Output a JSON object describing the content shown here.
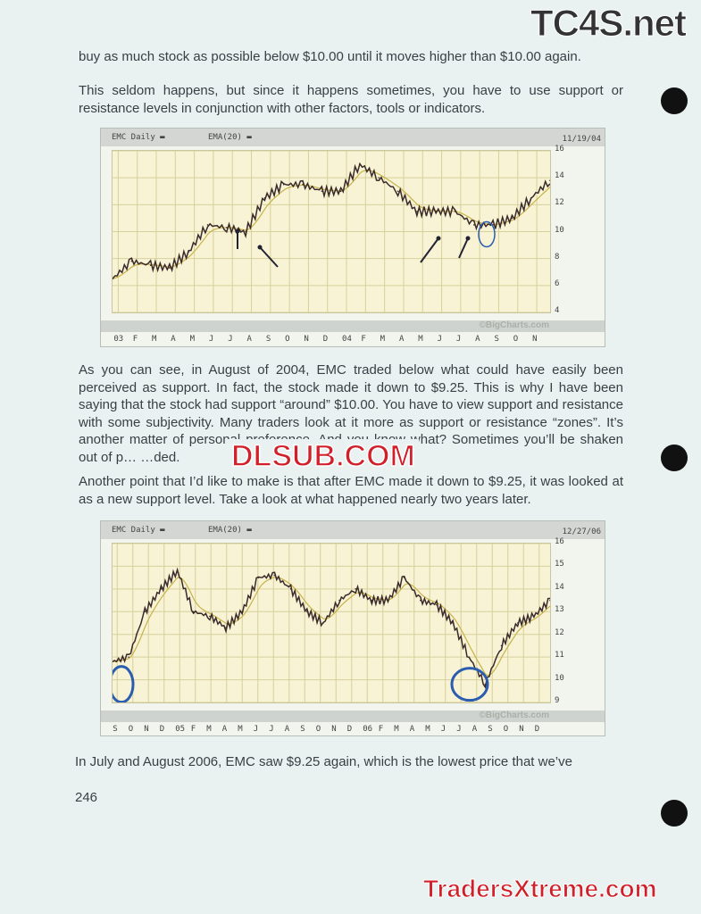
{
  "watermarks": {
    "top": "TC4S.net",
    "middle": "DLSUB.COM",
    "bottom": "TradersXtreme.com"
  },
  "paragraphs": [
    "buy as much stock as possible below $10.00 until it moves higher than $10.00 again.",
    "This seldom happens, but since it happens sometimes, you have to use support or resistance levels in conjunction with other factors, tools or indicators.",
    "As you can see, in August of 2004, EMC traded below what could have easily been perceived as support. In fact, the stock made it down to $9.25. This is why I have been saying that the stock had support “around” $10.00. You have to view support and resistance with some subjectivity. Many traders look at it more as support or resistance “zones”. It’s another matter of personal preference. And you know what? Sometimes you’ll be shaken out of p… …ded.",
    "Another point that I’d like to make is that after EMC made it down to $9.25, it was looked at as a new support level. Take a look at what happened nearly two years later.",
    "In July and August 2006, EMC saw $9.25 again, which is the lowest price that we’ve"
  ],
  "page_number": "246",
  "colors": {
    "price": "#3a2a2a",
    "ema": "#c9b24a",
    "circle": "#2a5db0",
    "plot_bg": "#f7f3d4",
    "grid": "#d8d09a"
  },
  "chart_data": [
    {
      "type": "line",
      "legend": [
        "EMC Daily",
        "EMA(20)"
      ],
      "date": "11/19/04",
      "credit": "©BigCharts.com",
      "ylim": [
        4,
        16
      ],
      "yticks": [
        4,
        6,
        8,
        10,
        12,
        14,
        16
      ],
      "xticks": [
        "03",
        "F",
        "M",
        "A",
        "M",
        "J",
        "J",
        "A",
        "S",
        "O",
        "N",
        "D",
        "04",
        "F",
        "M",
        "A",
        "M",
        "J",
        "J",
        "A",
        "S",
        "O",
        "N"
      ],
      "values": [
        6.5,
        7.8,
        7.5,
        7.3,
        8.5,
        10.5,
        10.3,
        10,
        12.5,
        13.5,
        13.5,
        13,
        13,
        15,
        14,
        13,
        11.5,
        11.5,
        11.5,
        10.5,
        10.5,
        11,
        12.5,
        13.8
      ],
      "annotations": [
        "arrows at Jul 03, Aug 03, May 04, Jul 04 support",
        "circle at Aug 04 low 9.25"
      ]
    },
    {
      "type": "line",
      "legend": [
        "EMC Daily",
        "EMA(20)"
      ],
      "date": "12/27/06",
      "credit": "©BigCharts.com",
      "ylim": [
        9,
        16
      ],
      "yticks": [
        9,
        10,
        11,
        12,
        13,
        14,
        15,
        16
      ],
      "xticks": [
        "S",
        "O",
        "N",
        "D",
        "05",
        "F",
        "M",
        "A",
        "M",
        "J",
        "J",
        "A",
        "S",
        "O",
        "N",
        "D",
        "06",
        "F",
        "M",
        "A",
        "M",
        "J",
        "J",
        "A",
        "S",
        "O",
        "N",
        "D"
      ],
      "values": [
        10.8,
        11,
        13,
        14,
        14.8,
        13,
        12.8,
        12.3,
        13,
        14.5,
        14.6,
        14,
        13,
        12.5,
        13.5,
        14,
        13.5,
        13.5,
        14.5,
        13.5,
        13.3,
        12.5,
        11,
        9.8,
        11.5,
        12.5,
        12.8,
        13.5
      ],
      "annotations": [
        "circle at Sep 04 low ~9.4",
        "circle at Jul-Aug 06 low ~9.4"
      ]
    }
  ]
}
